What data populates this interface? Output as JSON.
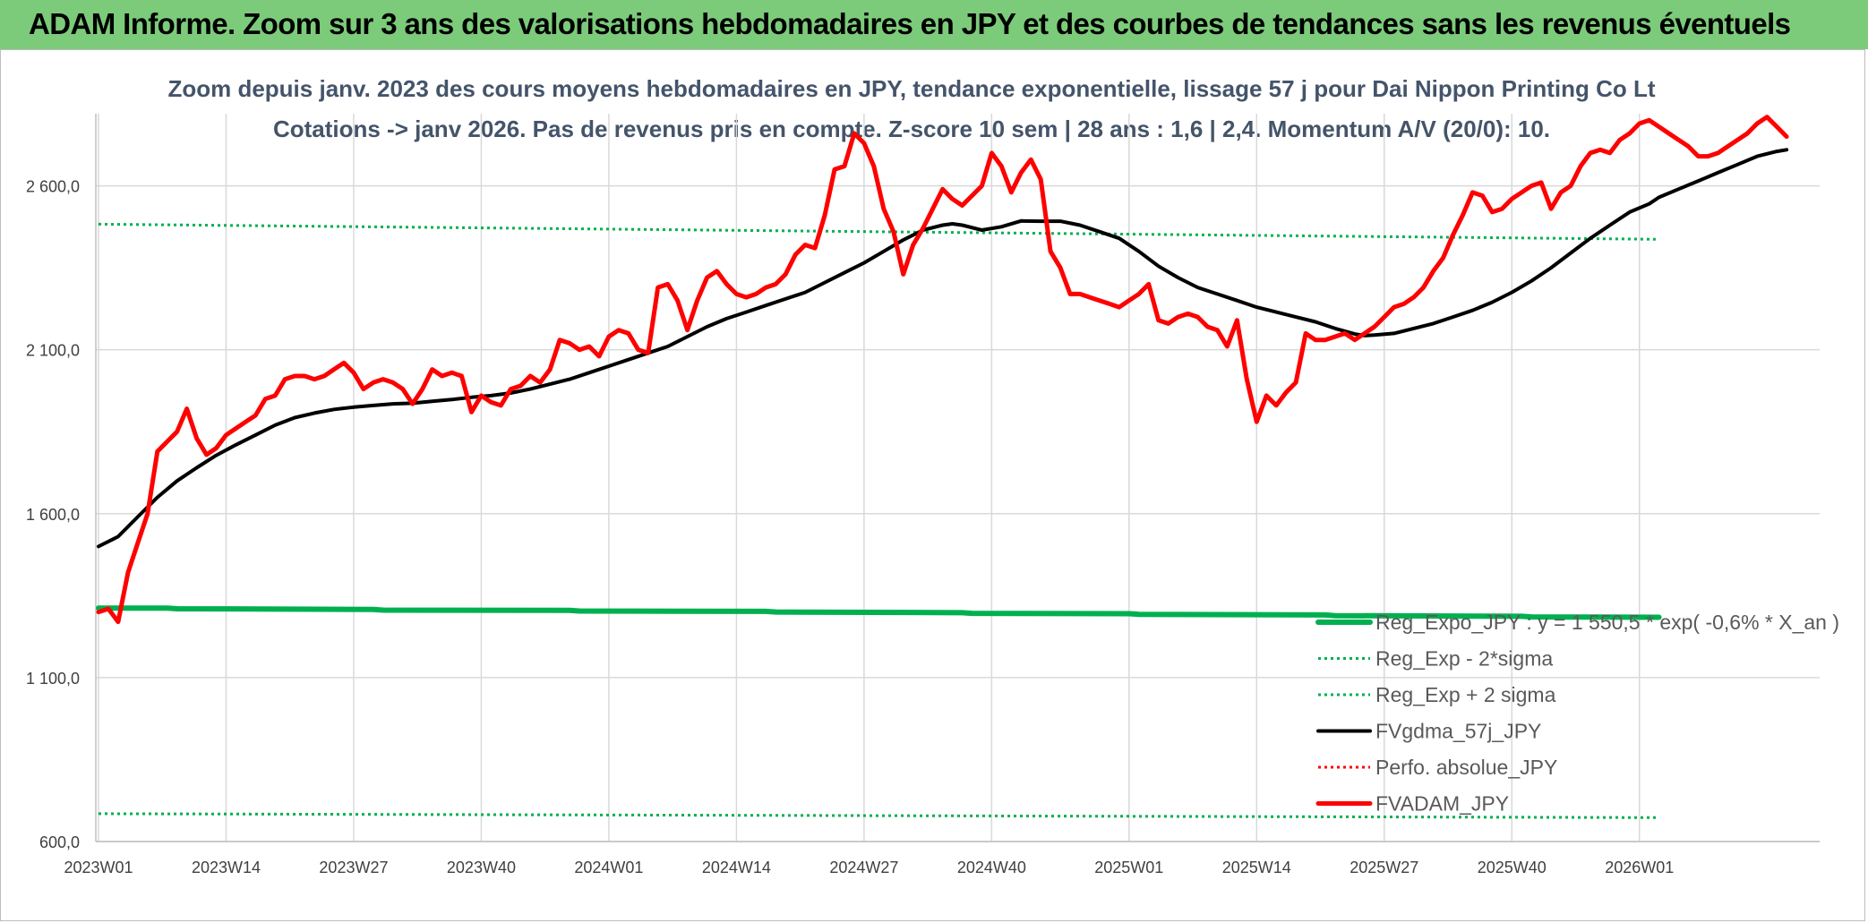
{
  "header": {
    "title": "ADAM Informe. Zoom sur 3 ans des valorisations hebdomadaires en JPY et des courbes de tendances sans les revenus éventuels"
  },
  "chart_data": {
    "type": "line",
    "title_line1": "Zoom depuis janv. 2023 des cours moyens hebdomadaires en JPY, tendance exponentielle, lissage 57 j pour Dai Nippon Printing Co Lt",
    "title_line2": "Cotations -> janv 2026. Pas de revenus pris en compte. Z-score 10 sem | 28 ans : 1,6 | 2,4. Momentum A/V (20/0): 10.",
    "ylim": [
      600,
      2820
    ],
    "yticks": [
      600,
      1100,
      1600,
      2100,
      2600
    ],
    "ytick_labels": [
      "600,0",
      "1 100,0",
      "1 600,0",
      "2 100,0",
      "2 600,0"
    ],
    "x_count": 159,
    "x_ticks": [
      {
        "index": 0,
        "label": "2023W01"
      },
      {
        "index": 13,
        "label": "2023W14"
      },
      {
        "index": 26,
        "label": "2023W27"
      },
      {
        "index": 39,
        "label": "2023W40"
      },
      {
        "index": 52,
        "label": "2024W01"
      },
      {
        "index": 65,
        "label": "2024W14"
      },
      {
        "index": 78,
        "label": "2024W27"
      },
      {
        "index": 91,
        "label": "2024W40"
      },
      {
        "index": 105,
        "label": "2025W01"
      },
      {
        "index": 118,
        "label": "2025W14"
      },
      {
        "index": 131,
        "label": "2025W27"
      },
      {
        "index": 144,
        "label": "2025W40"
      },
      {
        "index": 157,
        "label": "2026W01"
      }
    ],
    "series": [
      {
        "name": "Reg_Expo_JPY : y = 1 550,5 * exp( -0,6% * X_an )",
        "color": "#00b050",
        "style": "solid",
        "width": 6,
        "points": [
          [
            0,
            1312
          ],
          [
            7,
            1312
          ],
          [
            8,
            1310
          ],
          [
            28,
            1308
          ],
          [
            29,
            1306
          ],
          [
            48,
            1305
          ],
          [
            49,
            1303
          ],
          [
            68,
            1302
          ],
          [
            69,
            1300
          ],
          [
            88,
            1298
          ],
          [
            89,
            1296
          ],
          [
            105,
            1295
          ],
          [
            106,
            1293
          ],
          [
            125,
            1291
          ],
          [
            126,
            1289
          ],
          [
            145,
            1287
          ],
          [
            146,
            1285
          ],
          [
            159,
            1284
          ]
        ]
      },
      {
        "name": "Reg_Exp - 2*sigma",
        "color": "#00b050",
        "style": "dotted",
        "width": 3,
        "points": [
          [
            0,
            685
          ],
          [
            159,
            673
          ]
        ]
      },
      {
        "name": "Reg_Exp + 2 sigma",
        "color": "#00b050",
        "style": "dotted",
        "width": 3,
        "points": [
          [
            0,
            2483
          ],
          [
            159,
            2437
          ]
        ]
      },
      {
        "name": "FVgdma_57j_JPY",
        "color": "#000000",
        "style": "solid",
        "width": 4,
        "points": [
          [
            0,
            1500
          ],
          [
            2,
            1530
          ],
          [
            4,
            1590
          ],
          [
            6,
            1650
          ],
          [
            8,
            1700
          ],
          [
            10,
            1740
          ],
          [
            12,
            1778
          ],
          [
            14,
            1810
          ],
          [
            16,
            1840
          ],
          [
            18,
            1870
          ],
          [
            20,
            1893
          ],
          [
            22,
            1907
          ],
          [
            24,
            1918
          ],
          [
            26,
            1925
          ],
          [
            28,
            1930
          ],
          [
            30,
            1935
          ],
          [
            32,
            1937
          ],
          [
            34,
            1943
          ],
          [
            36,
            1948
          ],
          [
            38,
            1955
          ],
          [
            40,
            1960
          ],
          [
            42,
            1968
          ],
          [
            44,
            1980
          ],
          [
            46,
            1995
          ],
          [
            48,
            2010
          ],
          [
            50,
            2030
          ],
          [
            52,
            2050
          ],
          [
            54,
            2070
          ],
          [
            56,
            2090
          ],
          [
            58,
            2110
          ],
          [
            60,
            2140
          ],
          [
            62,
            2170
          ],
          [
            64,
            2195
          ],
          [
            66,
            2215
          ],
          [
            68,
            2235
          ],
          [
            70,
            2255
          ],
          [
            72,
            2275
          ],
          [
            74,
            2305
          ],
          [
            76,
            2335
          ],
          [
            78,
            2365
          ],
          [
            80,
            2400
          ],
          [
            82,
            2435
          ],
          [
            84,
            2465
          ],
          [
            86,
            2480
          ],
          [
            87,
            2484
          ],
          [
            88,
            2480
          ],
          [
            90,
            2465
          ],
          [
            92,
            2475
          ],
          [
            94,
            2493
          ],
          [
            96,
            2492
          ],
          [
            98,
            2492
          ],
          [
            100,
            2480
          ],
          [
            102,
            2460
          ],
          [
            104,
            2440
          ],
          [
            106,
            2400
          ],
          [
            108,
            2355
          ],
          [
            110,
            2320
          ],
          [
            112,
            2290
          ],
          [
            114,
            2270
          ],
          [
            116,
            2250
          ],
          [
            118,
            2230
          ],
          [
            120,
            2215
          ],
          [
            122,
            2200
          ],
          [
            124,
            2185
          ],
          [
            126,
            2165
          ],
          [
            128,
            2148
          ],
          [
            129,
            2143
          ],
          [
            130,
            2145
          ],
          [
            132,
            2150
          ],
          [
            134,
            2165
          ],
          [
            136,
            2180
          ],
          [
            138,
            2200
          ],
          [
            140,
            2220
          ],
          [
            142,
            2245
          ],
          [
            144,
            2275
          ],
          [
            146,
            2310
          ],
          [
            148,
            2350
          ],
          [
            150,
            2395
          ],
          [
            152,
            2440
          ],
          [
            154,
            2480
          ],
          [
            156,
            2520
          ],
          [
            158,
            2545
          ],
          [
            159,
            2565
          ],
          [
            161,
            2590
          ],
          [
            163,
            2615
          ],
          [
            165,
            2640
          ],
          [
            167,
            2665
          ],
          [
            169,
            2690
          ],
          [
            171,
            2705
          ],
          [
            172,
            2710
          ]
        ]
      },
      {
        "name": "Perfo. absolue_JPY",
        "color": "#ff0000",
        "style": "dotted",
        "width": 3,
        "points": []
      },
      {
        "name": "FVADAM_JPY",
        "color": "#ff0000",
        "style": "solid",
        "width": 5,
        "points": [
          [
            0,
            1300
          ],
          [
            1,
            1310
          ],
          [
            2,
            1270
          ],
          [
            3,
            1420
          ],
          [
            4,
            1510
          ],
          [
            5,
            1600
          ],
          [
            6,
            1790
          ],
          [
            7,
            1820
          ],
          [
            8,
            1850
          ],
          [
            9,
            1920
          ],
          [
            10,
            1830
          ],
          [
            11,
            1780
          ],
          [
            12,
            1800
          ],
          [
            13,
            1840
          ],
          [
            14,
            1860
          ],
          [
            15,
            1880
          ],
          [
            16,
            1900
          ],
          [
            17,
            1950
          ],
          [
            18,
            1960
          ],
          [
            19,
            2010
          ],
          [
            20,
            2020
          ],
          [
            21,
            2020
          ],
          [
            22,
            2010
          ],
          [
            23,
            2020
          ],
          [
            24,
            2040
          ],
          [
            25,
            2060
          ],
          [
            26,
            2030
          ],
          [
            27,
            1980
          ],
          [
            28,
            2000
          ],
          [
            29,
            2010
          ],
          [
            30,
            2000
          ],
          [
            31,
            1980
          ],
          [
            32,
            1935
          ],
          [
            33,
            1980
          ],
          [
            34,
            2040
          ],
          [
            35,
            2020
          ],
          [
            36,
            2030
          ],
          [
            37,
            2020
          ],
          [
            38,
            1910
          ],
          [
            39,
            1960
          ],
          [
            40,
            1940
          ],
          [
            41,
            1930
          ],
          [
            42,
            1980
          ],
          [
            43,
            1990
          ],
          [
            44,
            2020
          ],
          [
            45,
            2000
          ],
          [
            46,
            2040
          ],
          [
            47,
            2130
          ],
          [
            48,
            2120
          ],
          [
            49,
            2100
          ],
          [
            50,
            2110
          ],
          [
            51,
            2080
          ],
          [
            52,
            2140
          ],
          [
            53,
            2160
          ],
          [
            54,
            2150
          ],
          [
            55,
            2100
          ],
          [
            56,
            2090
          ],
          [
            57,
            2290
          ],
          [
            58,
            2300
          ],
          [
            59,
            2250
          ],
          [
            60,
            2160
          ],
          [
            61,
            2250
          ],
          [
            62,
            2320
          ],
          [
            63,
            2340
          ],
          [
            64,
            2300
          ],
          [
            65,
            2270
          ],
          [
            66,
            2260
          ],
          [
            67,
            2270
          ],
          [
            68,
            2290
          ],
          [
            69,
            2300
          ],
          [
            70,
            2330
          ],
          [
            71,
            2390
          ],
          [
            72,
            2420
          ],
          [
            73,
            2410
          ],
          [
            74,
            2510
          ],
          [
            75,
            2650
          ],
          [
            76,
            2660
          ],
          [
            77,
            2760
          ],
          [
            78,
            2730
          ],
          [
            79,
            2660
          ],
          [
            80,
            2530
          ],
          [
            81,
            2460
          ],
          [
            82,
            2330
          ],
          [
            83,
            2420
          ],
          [
            84,
            2470
          ],
          [
            85,
            2530
          ],
          [
            86,
            2590
          ],
          [
            87,
            2560
          ],
          [
            88,
            2540
          ],
          [
            89,
            2570
          ],
          [
            90,
            2600
          ],
          [
            91,
            2700
          ],
          [
            92,
            2660
          ],
          [
            93,
            2580
          ],
          [
            94,
            2640
          ],
          [
            95,
            2680
          ],
          [
            96,
            2620
          ],
          [
            97,
            2400
          ],
          [
            98,
            2350
          ],
          [
            99,
            2270
          ],
          [
            100,
            2270
          ],
          [
            101,
            2260
          ],
          [
            102,
            2250
          ],
          [
            103,
            2240
          ],
          [
            104,
            2230
          ],
          [
            105,
            2250
          ],
          [
            106,
            2270
          ],
          [
            107,
            2300
          ],
          [
            108,
            2190
          ],
          [
            109,
            2180
          ],
          [
            110,
            2200
          ],
          [
            111,
            2210
          ],
          [
            112,
            2200
          ],
          [
            113,
            2170
          ],
          [
            114,
            2160
          ],
          [
            115,
            2110
          ],
          [
            116,
            2190
          ],
          [
            117,
            2010
          ],
          [
            118,
            1880
          ],
          [
            119,
            1960
          ],
          [
            120,
            1930
          ],
          [
            121,
            1970
          ],
          [
            122,
            2000
          ],
          [
            123,
            2150
          ],
          [
            124,
            2130
          ],
          [
            125,
            2130
          ],
          [
            126,
            2140
          ],
          [
            127,
            2150
          ],
          [
            128,
            2130
          ],
          [
            129,
            2150
          ],
          [
            130,
            2170
          ],
          [
            131,
            2200
          ],
          [
            132,
            2230
          ],
          [
            133,
            2240
          ],
          [
            134,
            2260
          ],
          [
            135,
            2290
          ],
          [
            136,
            2340
          ],
          [
            137,
            2380
          ],
          [
            138,
            2450
          ],
          [
            139,
            2510
          ],
          [
            140,
            2580
          ],
          [
            141,
            2570
          ],
          [
            142,
            2520
          ],
          [
            143,
            2530
          ],
          [
            144,
            2560
          ],
          [
            145,
            2580
          ],
          [
            146,
            2600
          ],
          [
            147,
            2610
          ],
          [
            148,
            2530
          ],
          [
            149,
            2580
          ],
          [
            150,
            2600
          ],
          [
            151,
            2660
          ],
          [
            152,
            2700
          ],
          [
            153,
            2710
          ],
          [
            154,
            2700
          ],
          [
            155,
            2740
          ],
          [
            156,
            2760
          ],
          [
            157,
            2790
          ],
          [
            158,
            2800
          ],
          [
            159,
            2780
          ],
          [
            160,
            2760
          ],
          [
            161,
            2740
          ],
          [
            162,
            2720
          ],
          [
            163,
            2690
          ],
          [
            164,
            2690
          ],
          [
            165,
            2700
          ],
          [
            166,
            2720
          ],
          [
            167,
            2740
          ],
          [
            168,
            2760
          ],
          [
            169,
            2790
          ],
          [
            170,
            2810
          ],
          [
            171,
            2780
          ],
          [
            172,
            2750
          ]
        ]
      }
    ]
  }
}
